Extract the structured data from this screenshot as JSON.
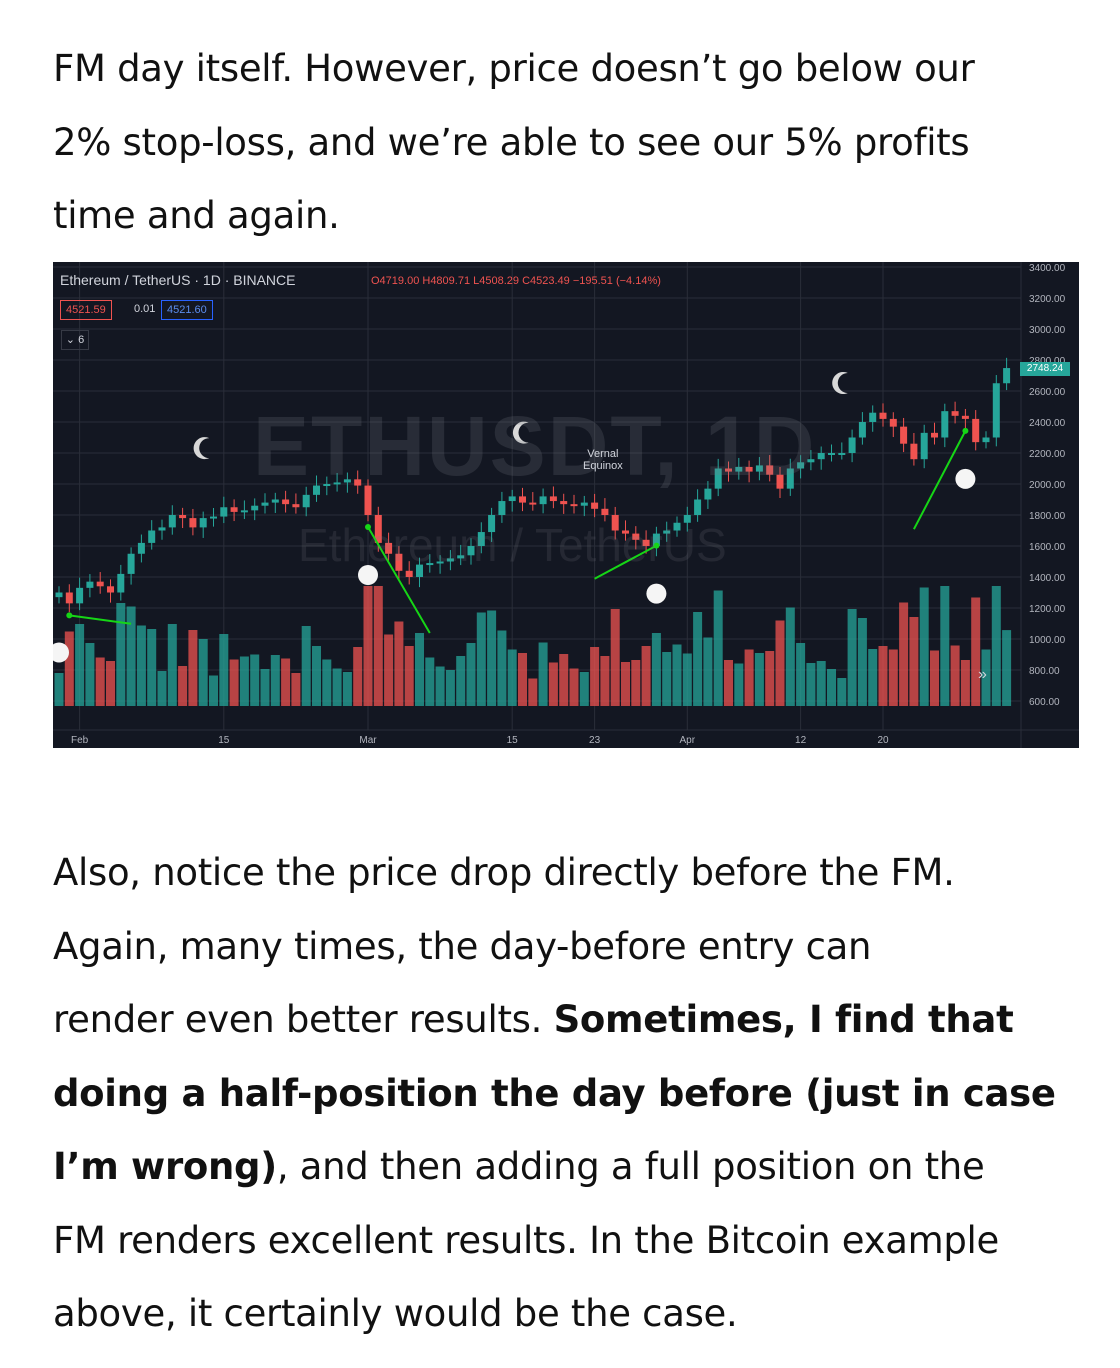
{
  "document": {
    "para1_lines": [
      "FM day itself. However, price doesn’t go below our",
      "2% stop-loss, and we’re able to see our 5% profits",
      "time and again."
    ],
    "para2": {
      "line1": "Also, notice the price drop directly before the FM.",
      "line2": "Again, many times, the day-before entry can",
      "line3_normal": "render even better results. ",
      "line3_bold": "Sometimes, I find that",
      "line4_bold": "doing a half-position the day before (just in case",
      "line5_bold": "I’m wrong)",
      "line5_normal": ", and then adding a full position on the",
      "line6": "FM renders excellent results. In the Bitcoin example",
      "line7": "above, it certainly would be the case."
    }
  },
  "chart": {
    "symbol_line": "Ethereum / TetherUS · 1D · BINANCE",
    "ohlc": "O4719.00 H4809.71 L4508.29 C4523.49 −195.51 (−4.14%)",
    "bid": "4521.59",
    "spread": "0.01",
    "ask": "4521.60",
    "collapse_label": "⌄ 6",
    "watermark_symbol": "ETHUSDT, 1D",
    "watermark_name": "Ethereum / TetherUS",
    "event_label": "Vernal\nEquinox",
    "last_price": "2748.24",
    "forward_icon": "»",
    "up_color": "#26a69a",
    "down_color": "#ef5350",
    "background": "#131722"
  },
  "chart_data": {
    "type": "candlestick",
    "y_ticks": [
      "3400.00",
      "3200.00",
      "3000.00",
      "2800.00",
      "2600.00",
      "2400.00",
      "2200.00",
      "2000.00",
      "1800.00",
      "1600.00",
      "1400.00",
      "1200.00",
      "1000.00",
      "800.00",
      "600.00"
    ],
    "y_range": [
      600,
      3400
    ],
    "x_ticks": [
      {
        "label": "Feb",
        "day": 2
      },
      {
        "label": "15",
        "day": 16
      },
      {
        "label": "Mar",
        "day": 30
      },
      {
        "label": "15",
        "day": 44
      },
      {
        "label": "23",
        "day": 52
      },
      {
        "label": "Apr",
        "day": 61
      },
      {
        "label": "12",
        "day": 72
      },
      {
        "label": "20",
        "day": 80
      }
    ],
    "closes": [
      1300,
      1230,
      1330,
      1370,
      1340,
      1300,
      1420,
      1550,
      1620,
      1700,
      1720,
      1800,
      1780,
      1720,
      1780,
      1790,
      1850,
      1820,
      1830,
      1860,
      1880,
      1900,
      1870,
      1850,
      1930,
      1990,
      2000,
      2010,
      2030,
      1990,
      1800,
      1620,
      1550,
      1440,
      1400,
      1480,
      1490,
      1500,
      1520,
      1540,
      1600,
      1690,
      1800,
      1890,
      1920,
      1880,
      1870,
      1920,
      1890,
      1870,
      1860,
      1880,
      1840,
      1800,
      1700,
      1680,
      1640,
      1600,
      1680,
      1700,
      1750,
      1800,
      1900,
      1970,
      2100,
      2080,
      2110,
      2080,
      2120,
      2060,
      1970,
      2100,
      2140,
      2160,
      2200,
      2200,
      2200,
      2300,
      2400,
      2460,
      2420,
      2370,
      2260,
      2160,
      2330,
      2300,
      2470,
      2440,
      2420,
      2270,
      2300,
      2650,
      2748
    ],
    "volume_note": "relative volume bars, red/teal by candle direction",
    "markers": [
      {
        "type": "full-moon",
        "day": 0
      },
      {
        "type": "new-moon",
        "day": 14
      },
      {
        "type": "full-moon",
        "day": 30
      },
      {
        "type": "new-moon",
        "day": 45
      },
      {
        "type": "full-moon",
        "day": 58
      },
      {
        "type": "new-moon",
        "day": 76
      },
      {
        "type": "full-moon",
        "day": 88
      }
    ],
    "arrows": [
      {
        "from_day": 7,
        "to_day": 1
      },
      {
        "from_day": 36,
        "to_day": 30
      },
      {
        "from_day": 52,
        "to_day": 58
      },
      {
        "from_day": 83,
        "to_day": 88
      }
    ]
  }
}
